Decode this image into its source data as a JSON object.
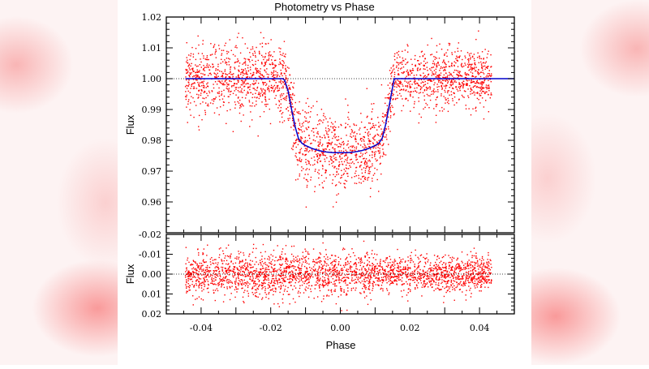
{
  "chart_data": [
    {
      "type": "scatter",
      "title": "Photometry vs Phase",
      "xlabel": "",
      "ylabel": "Flux",
      "xlim": [
        -0.05,
        0.05
      ],
      "ylim": [
        0.95,
        1.02
      ],
      "yticks": [
        "1.02",
        "1.01",
        "1.00",
        "0.99",
        "0.98",
        "0.97",
        "0.96"
      ],
      "grid": false,
      "reference_line": {
        "y": 1.0,
        "style": "dotted",
        "color": "#000000"
      },
      "series": [
        {
          "kind": "observations",
          "color": "#ff0000",
          "x_range": [
            -0.0445,
            0.0435
          ],
          "scatter_sd": 0.0055
        },
        {
          "kind": "model",
          "color": "#0000cc",
          "x": [
            -0.05,
            -0.0165,
            -0.016,
            -0.015,
            -0.014,
            -0.013,
            -0.012,
            -0.011,
            -0.01,
            -0.008,
            -0.006,
            -0.004,
            -0.002,
            0.0,
            0.002,
            0.004,
            0.006,
            0.008,
            0.01,
            0.011,
            0.012,
            0.013,
            0.014,
            0.015,
            0.0155,
            0.05
          ],
          "y": [
            1.0,
            1.0,
            0.9995,
            0.996,
            0.99,
            0.9845,
            0.9805,
            0.979,
            0.9783,
            0.9773,
            0.9766,
            0.9762,
            0.976,
            0.976,
            0.976,
            0.9762,
            0.9766,
            0.9773,
            0.9783,
            0.979,
            0.9805,
            0.985,
            0.991,
            0.997,
            1.0,
            1.0
          ]
        }
      ]
    },
    {
      "type": "scatter",
      "xlabel": "Phase",
      "ylabel": "Flux",
      "xlim": [
        -0.05,
        0.05
      ],
      "ylim": [
        0.02,
        -0.02
      ],
      "y_inverted": true,
      "xticks": [
        "-0.04",
        "-0.02",
        "0.00",
        "0.02",
        "0.04"
      ],
      "yticks": [
        "-0.02",
        "-0.01",
        "0.00",
        "0.01",
        "0.02"
      ],
      "grid": false,
      "reference_line": {
        "y": 0.0,
        "style": "dotted",
        "color": "#000000"
      },
      "series": [
        {
          "kind": "residuals",
          "color": "#ff0000",
          "x_range": [
            -0.0445,
            0.0435
          ],
          "scatter_sd": 0.0055
        }
      ]
    }
  ]
}
